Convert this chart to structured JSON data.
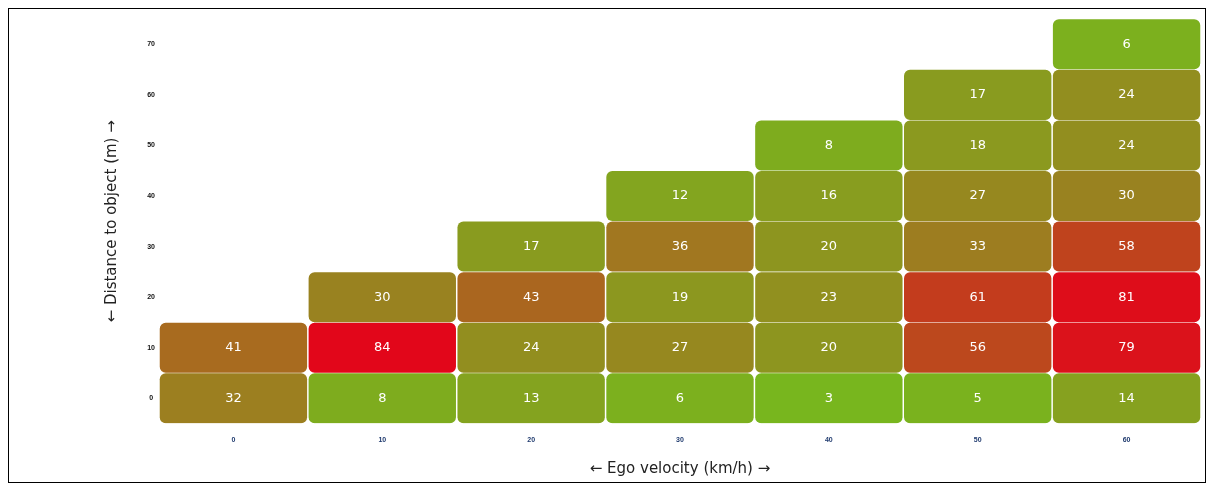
{
  "chart_data": {
    "type": "heatmap",
    "xlabel": "← Ego velocity (km/h) →",
    "ylabel": "← Distance to object (m) →",
    "categories": [
      "0",
      "10",
      "20",
      "30",
      "40",
      "50",
      "60"
    ],
    "y_categories": [
      "70",
      "60",
      "50",
      "40",
      "30",
      "20",
      "10",
      "0"
    ],
    "cells": [
      [
        null,
        null,
        null,
        null,
        null,
        null,
        6
      ],
      [
        null,
        null,
        null,
        null,
        null,
        17,
        24
      ],
      [
        null,
        null,
        null,
        null,
        8,
        18,
        24
      ],
      [
        null,
        null,
        null,
        12,
        16,
        27,
        30
      ],
      [
        null,
        null,
        17,
        36,
        20,
        33,
        58
      ],
      [
        null,
        30,
        43,
        19,
        23,
        61,
        81
      ],
      [
        41,
        84,
        24,
        27,
        20,
        56,
        79
      ],
      [
        32,
        8,
        13,
        6,
        3,
        5,
        14
      ]
    ],
    "data_labels": true,
    "grid": false,
    "legend": false
  }
}
